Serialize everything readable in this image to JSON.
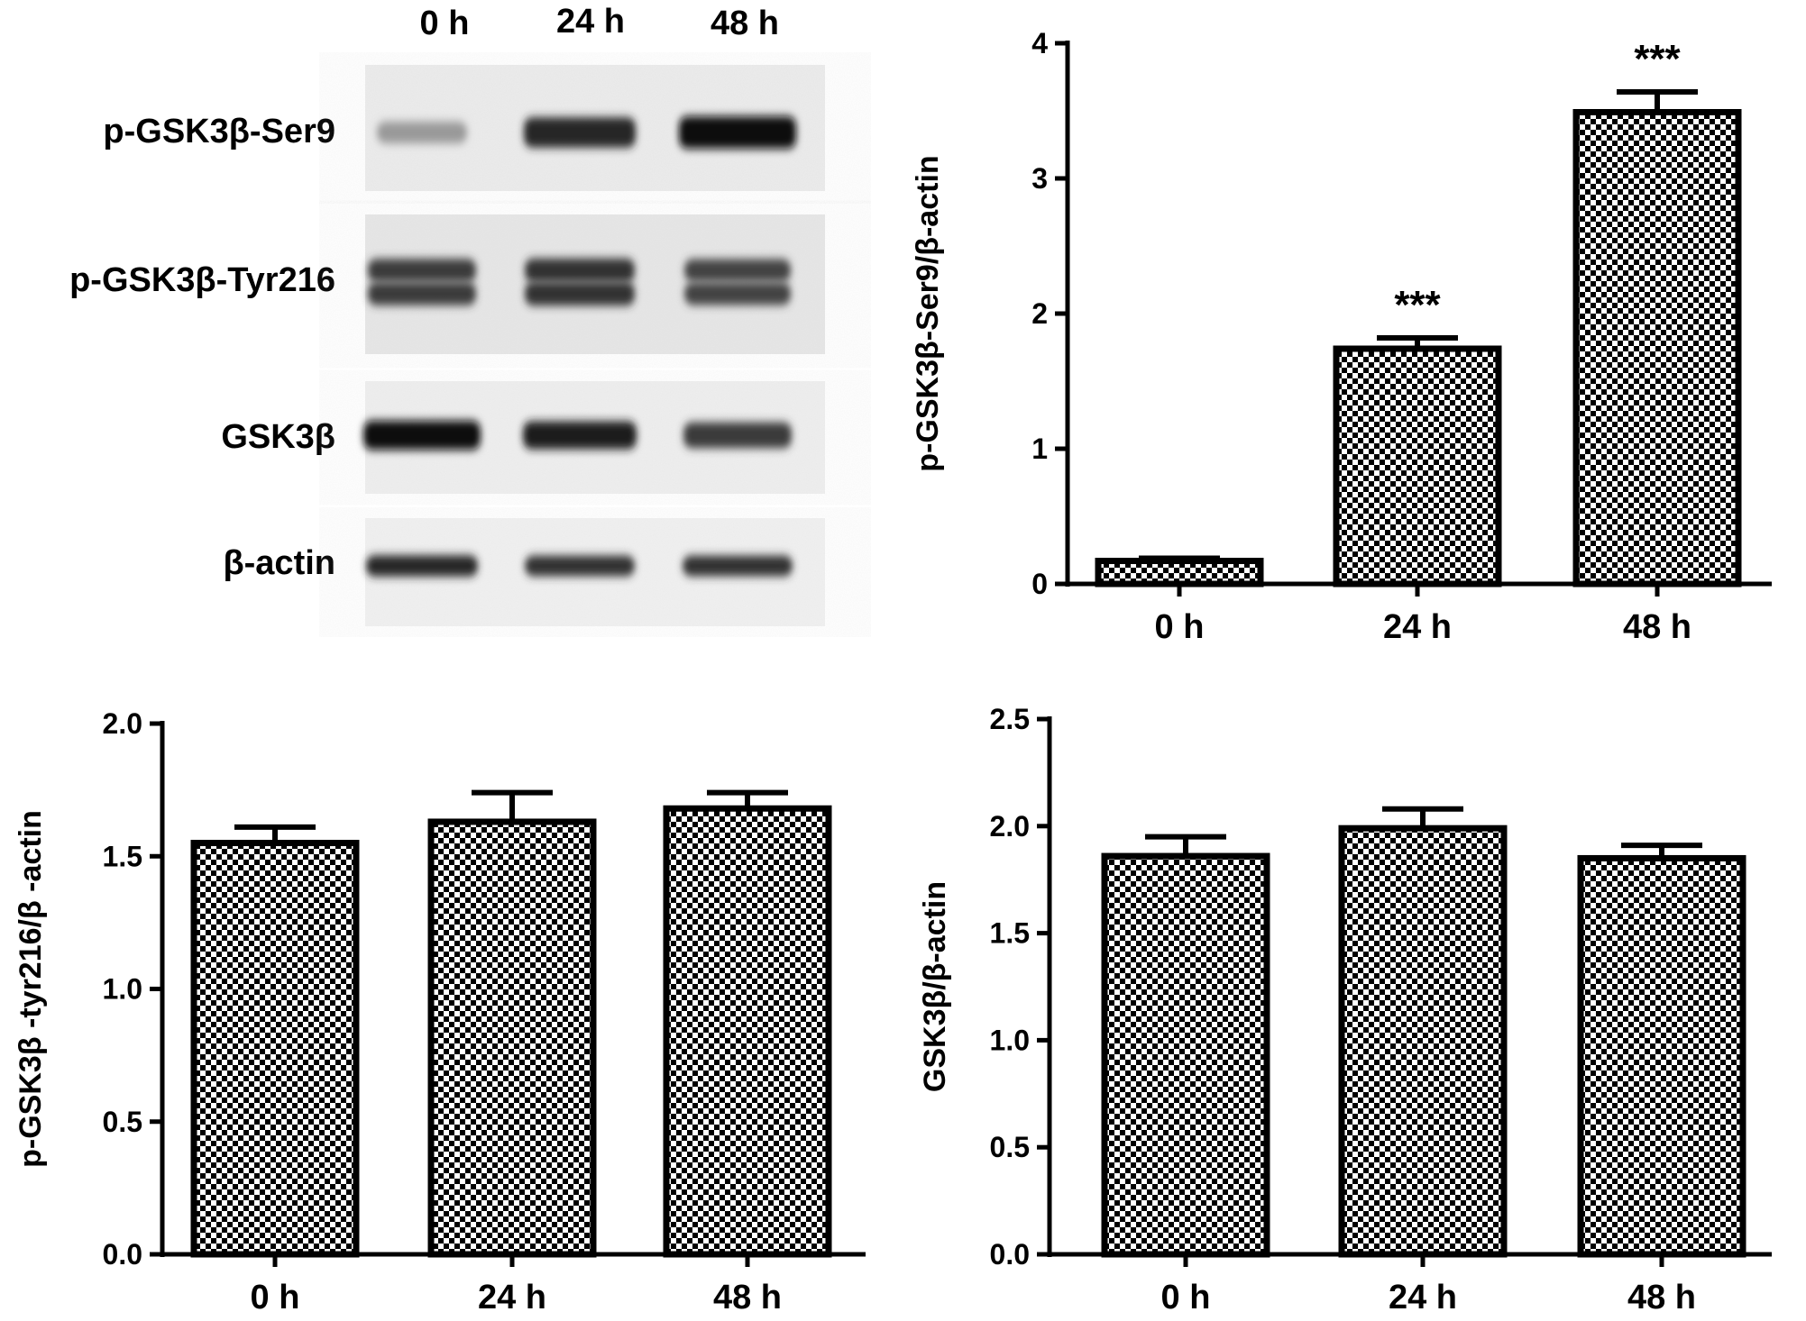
{
  "blot": {
    "lane_labels": [
      "0 h",
      "24 h",
      "48 h"
    ],
    "rows": [
      {
        "label": "p-GSK3β-Ser9",
        "band_intensity": [
          0.25,
          0.85,
          1.0
        ]
      },
      {
        "label": "p-GSK3β-Tyr216",
        "band_intensity": [
          0.75,
          0.8,
          0.7
        ]
      },
      {
        "label": "GSK3β",
        "band_intensity": [
          1.0,
          0.9,
          0.75
        ]
      },
      {
        "label": "β-actin",
        "band_intensity": [
          0.85,
          0.8,
          0.8
        ]
      }
    ]
  },
  "chart_data": [
    {
      "type": "bar",
      "categories": [
        "0 h",
        "24 h",
        "48 h"
      ],
      "values": [
        0.17,
        1.74,
        3.49
      ],
      "errors": [
        0.02,
        0.08,
        0.15
      ],
      "annotations": [
        "",
        "***",
        "***"
      ],
      "ylabel": "p-GSK3β-Ser9/β-actin",
      "xlabel": "",
      "ylim": [
        0,
        4
      ],
      "yticks": [
        "0",
        "1",
        "2",
        "3",
        "4"
      ],
      "ytick_values": [
        0,
        1,
        2,
        3,
        4
      ],
      "grid": false,
      "bar_pattern": "checkerboard"
    },
    {
      "type": "bar",
      "categories": [
        "0 h",
        "24 h",
        "48 h"
      ],
      "values": [
        1.55,
        1.63,
        1.68
      ],
      "errors": [
        0.06,
        0.11,
        0.06
      ],
      "annotations": [
        "",
        "",
        ""
      ],
      "ylabel": "p-GSK3β -tyr216/β -actin",
      "xlabel": "",
      "ylim": [
        0,
        2
      ],
      "yticks": [
        "0.0",
        "0.5",
        "1.0",
        "1.5",
        "2.0"
      ],
      "ytick_values": [
        0,
        0.5,
        1,
        1.5,
        2
      ],
      "grid": false,
      "bar_pattern": "checkerboard"
    },
    {
      "type": "bar",
      "categories": [
        "0 h",
        "24 h",
        "48 h"
      ],
      "values": [
        1.86,
        1.99,
        1.85
      ],
      "errors": [
        0.09,
        0.09,
        0.06
      ],
      "annotations": [
        "",
        "",
        ""
      ],
      "ylabel": "GSK3β/β-actin",
      "xlabel": "",
      "ylim": [
        0,
        2.5
      ],
      "yticks": [
        "0.0",
        "0.5",
        "1.0",
        "1.5",
        "2.0",
        "2.5"
      ],
      "ytick_values": [
        0,
        0.5,
        1,
        1.5,
        2,
        2.5
      ],
      "grid": false,
      "bar_pattern": "checkerboard"
    }
  ]
}
